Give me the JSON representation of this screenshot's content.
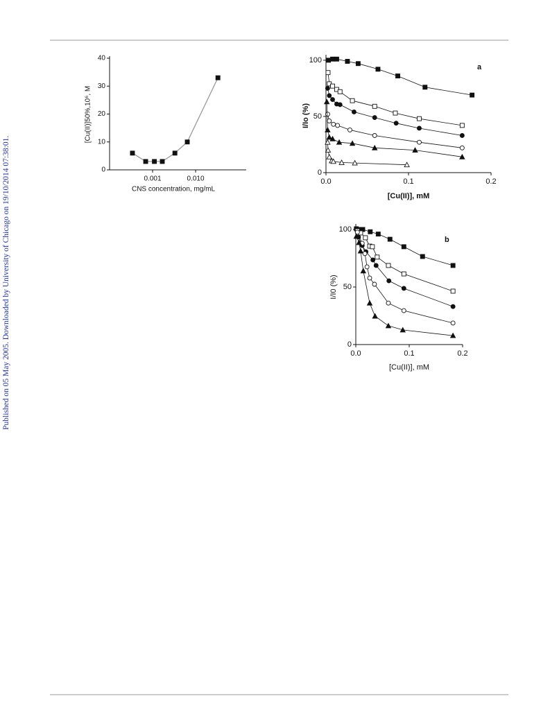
{
  "side_note": "Published on 05 May 2005. Downloaded by University of Chicago on 19/10/2014 07:38:01.",
  "chart_data": [
    {
      "type": "scatter-line",
      "xlabel": "CNS concentration, mg/mL",
      "ylabel": "[Cu(II)]50%,10⁶, M",
      "xscale": "log",
      "xlim": [
        0.0001,
        0.15
      ],
      "ylim": [
        0,
        40
      ],
      "xticks": [
        0.001,
        {
          "value": 0.01,
          "label": "0.010"
        }
      ],
      "yticks": [
        0,
        10,
        20,
        30,
        40
      ],
      "series": [
        {
          "color": "#111111",
          "line_color": "#999999",
          "marker": "filled-square",
          "x": [
            0.00034,
            0.00069,
            0.0011,
            0.00168,
            0.0033,
            0.0064,
            0.033
          ],
          "values": [
            6,
            3,
            3,
            3,
            6,
            10,
            33
          ]
        }
      ]
    },
    {
      "type": "scatter-line",
      "panel": "a",
      "xlabel": "[Cu(II)], mM",
      "ylabel": "I/Io (%)",
      "xlim": [
        0,
        0.2
      ],
      "ylim": [
        0,
        103
      ],
      "xticks": [
        {
          "value": 0,
          "label": "0.0"
        },
        0.1,
        0.2
      ],
      "yticks": [
        0,
        50,
        100
      ],
      "series": [
        {
          "color": "#111111",
          "marker": "filled-square",
          "x": [
            0.003,
            0.008,
            0.013,
            0.026,
            0.039,
            0.063,
            0.087,
            0.12,
            0.177
          ],
          "values": [
            100,
            101,
            101,
            99,
            97,
            92,
            86,
            76,
            69
          ]
        },
        {
          "color": "#111111",
          "marker": "open-square",
          "x": [
            0.0025,
            0.004,
            0.008,
            0.013,
            0.017,
            0.032,
            0.059,
            0.084,
            0.113,
            0.165
          ],
          "values": [
            89,
            79,
            77,
            74,
            72,
            64,
            59,
            53,
            48,
            42
          ]
        },
        {
          "color": "#111111",
          "marker": "filled-circle",
          "x": [
            0.002,
            0.004,
            0.008,
            0.013,
            0.017,
            0.034,
            0.059,
            0.085,
            0.113,
            0.165
          ],
          "values": [
            75,
            68.5,
            65,
            61,
            60.5,
            54,
            49,
            44,
            39.5,
            33
          ]
        },
        {
          "color": "#111111",
          "marker": "open-circle",
          "x": [
            0.002,
            0.004,
            0.009,
            0.014,
            0.029,
            0.059,
            0.113,
            0.165
          ],
          "values": [
            52,
            46,
            43,
            42,
            38,
            33,
            27,
            22
          ]
        },
        {
          "color": "#111111",
          "marker": "filled-triangle",
          "x": [
            0.001,
            0.002,
            0.004,
            0.008,
            0.016,
            0.032,
            0.059,
            0.108,
            0.165
          ],
          "values": [
            63,
            38,
            31.5,
            30,
            27,
            26,
            22,
            20,
            14
          ]
        },
        {
          "color": "#111111",
          "marker": "open-triangle",
          "x": [
            0.002,
            0.0025,
            0.004,
            0.007,
            0.009,
            0.019,
            0.035,
            0.098
          ],
          "values": [
            27,
            20,
            14,
            10.5,
            10,
            9,
            8.6,
            7
          ]
        }
      ]
    },
    {
      "type": "scatter-line",
      "panel": "b",
      "xlabel": "[Cu(II)], mM",
      "ylabel": "I/I0 (%)",
      "xlim": [
        0,
        0.2
      ],
      "ylim": [
        0,
        103
      ],
      "xticks": [
        {
          "value": 0,
          "label": "0.0"
        },
        0.1,
        0.2
      ],
      "yticks": [
        0,
        50,
        100
      ],
      "series": [
        {
          "color": "#111111",
          "marker": "filled-square",
          "x": [
            0.001,
            0.005,
            0.013,
            0.027,
            0.042,
            0.064,
            0.09,
            0.125,
            0.182
          ],
          "values": [
            100.6,
            100,
            100,
            98,
            96,
            91.5,
            85,
            76.5,
            68.7
          ]
        },
        {
          "color": "#111111",
          "marker": "open-square",
          "x": [
            0.003,
            0.009,
            0.018,
            0.026,
            0.031,
            0.04,
            0.061,
            0.09,
            0.182
          ],
          "values": [
            98.8,
            97,
            92.8,
            85.5,
            85,
            76,
            68.7,
            61.4,
            46.4
          ]
        },
        {
          "color": "#111111",
          "marker": "filled-circle",
          "x": [
            0.005,
            0.012,
            0.019,
            0.032,
            0.038,
            0.062,
            0.09,
            0.182
          ],
          "values": [
            93.4,
            86,
            80.7,
            73.5,
            68.7,
            55.4,
            48.8,
            33
          ]
        },
        {
          "color": "#111111",
          "marker": "open-circle",
          "x": [
            0.003,
            0.012,
            0.017,
            0.021,
            0.026,
            0.035,
            0.061,
            0.09,
            0.182
          ],
          "values": [
            97.6,
            88,
            79,
            67.5,
            57.8,
            52.4,
            36,
            29.5,
            18.7
          ]
        },
        {
          "color": "#111111",
          "marker": "filled-triangle",
          "x": [
            0.001,
            0.006,
            0.009,
            0.014,
            0.026,
            0.036,
            0.061,
            0.088,
            0.182
          ],
          "values": [
            94,
            88.6,
            81.3,
            64,
            36,
            24.7,
            16.3,
            12.7,
            7.8
          ]
        }
      ]
    }
  ]
}
